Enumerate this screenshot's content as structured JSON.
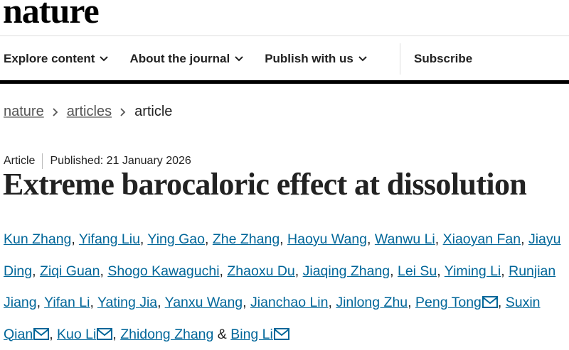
{
  "header": {
    "logo": "nature"
  },
  "nav": {
    "items": [
      "Explore content",
      "About the journal",
      "Publish with us",
      "Subscribe"
    ]
  },
  "breadcrumb": [
    "nature",
    "articles",
    "article"
  ],
  "article": {
    "type": "Article",
    "published": "Published: 21 January 2026",
    "title": "Extreme barocaloric effect at dissolution",
    "separator": ",",
    "conjunction": "&",
    "authors": [
      {
        "name": "Kun Zhang",
        "corresponding": false
      },
      {
        "name": "Yifang Liu",
        "corresponding": false
      },
      {
        "name": "Ying Gao",
        "corresponding": false
      },
      {
        "name": "Zhe Zhang",
        "corresponding": false
      },
      {
        "name": "Haoyu Wang",
        "corresponding": false
      },
      {
        "name": "Wanwu Li",
        "corresponding": false
      },
      {
        "name": "Xiaoyan Fan",
        "corresponding": false
      },
      {
        "name": "Jiayu Ding",
        "corresponding": false
      },
      {
        "name": "Ziqi Guan",
        "corresponding": false
      },
      {
        "name": "Shogo Kawaguchi",
        "corresponding": false
      },
      {
        "name": "Zhaoxu Du",
        "corresponding": false
      },
      {
        "name": "Jiaqing Zhang",
        "corresponding": false
      },
      {
        "name": "Lei Su",
        "corresponding": false
      },
      {
        "name": "Yiming Li",
        "corresponding": false
      },
      {
        "name": "Runjian Jiang",
        "corresponding": false
      },
      {
        "name": "Yifan Li",
        "corresponding": false
      },
      {
        "name": "Yating Jia",
        "corresponding": false
      },
      {
        "name": "Yanxu Wang",
        "corresponding": false
      },
      {
        "name": "Jianchao Lin",
        "corresponding": false
      },
      {
        "name": "Jinlong Zhu",
        "corresponding": false
      },
      {
        "name": "Peng Tong",
        "corresponding": true
      },
      {
        "name": "Suxin Qian",
        "corresponding": true
      },
      {
        "name": "Kuo Li",
        "corresponding": true
      },
      {
        "name": "Zhidong Zhang",
        "corresponding": false
      },
      {
        "name": "Bing Li",
        "corresponding": true
      }
    ]
  }
}
